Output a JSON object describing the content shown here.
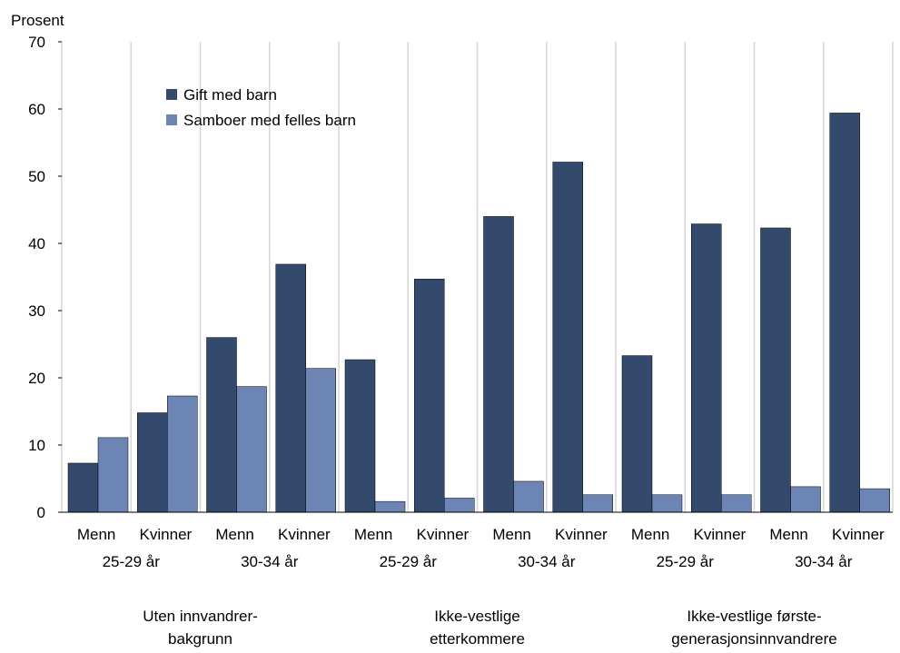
{
  "chart_data": {
    "type": "bar",
    "ylabel": "Prosent",
    "ylim": [
      0,
      70
    ],
    "yticks": [
      "0",
      "10",
      "20",
      "30",
      "40",
      "50",
      "60",
      "70"
    ],
    "grid": "vertical",
    "legend_placement": "top-left",
    "categories": [
      "Menn",
      "Kvinner",
      "Menn",
      "Kvinner",
      "Menn",
      "Kvinner",
      "Menn",
      "Kvinner",
      "Menn",
      "Kvinner",
      "Menn",
      "Kvinner"
    ],
    "age_labels": [
      "25-29 år",
      "30-34 år",
      "25-29 år",
      "30-34 år",
      "25-29 år",
      "30-34 år"
    ],
    "group_labels": [
      [
        "Uten innvandrer-",
        "bakgrunn"
      ],
      [
        "Ikke-vestlige",
        "etterkommere"
      ],
      [
        "Ikke-vestlige første-",
        "generasjonsinnvandrere"
      ]
    ],
    "series": [
      {
        "name": "Gift med barn",
        "color": "#344a6c",
        "values": [
          7.3,
          14.8,
          26.0,
          36.9,
          22.7,
          34.7,
          44.0,
          52.1,
          23.3,
          42.9,
          42.3,
          59.4
        ]
      },
      {
        "name": "Samboer med felles barn",
        "color": "#6c85b4",
        "values": [
          11.1,
          17.3,
          18.7,
          21.4,
          1.6,
          2.1,
          4.6,
          2.6,
          2.6,
          2.6,
          3.8,
          3.5
        ]
      }
    ]
  }
}
